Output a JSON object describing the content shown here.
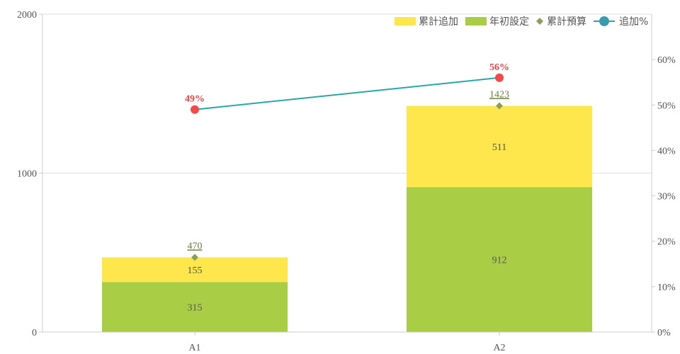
{
  "chart_data": {
    "type": "bar",
    "categories": [
      "A1",
      "A2"
    ],
    "series": [
      {
        "name": "年初設定",
        "kind": "bar",
        "values": [
          315,
          912
        ],
        "color": "#a9ce45"
      },
      {
        "name": "累計追加",
        "kind": "bar",
        "values": [
          155,
          511
        ],
        "color": "#fde74c"
      },
      {
        "name": "累計預算",
        "kind": "marker",
        "values": [
          470,
          1423
        ],
        "color": "#8aa05a"
      },
      {
        "name": "追加%",
        "kind": "line",
        "axis": "right",
        "values": [
          49,
          56
        ],
        "color": "#2aa6a6",
        "marker_color": "#f54848"
      }
    ],
    "ylim_left": [
      0,
      2000
    ],
    "yticks_left": [
      "0",
      "1000",
      "2000"
    ],
    "ylim_right": [
      0,
      70
    ],
    "yticks_right": [
      "0%",
      "10%",
      "20%",
      "30%",
      "40%",
      "50%",
      "60%"
    ],
    "percent_labels": [
      "49%",
      "56%"
    ],
    "legend": [
      "累計追加",
      "年初設定",
      "累計預算",
      "追加%"
    ],
    "legend_position": "top-right",
    "grid": true
  }
}
